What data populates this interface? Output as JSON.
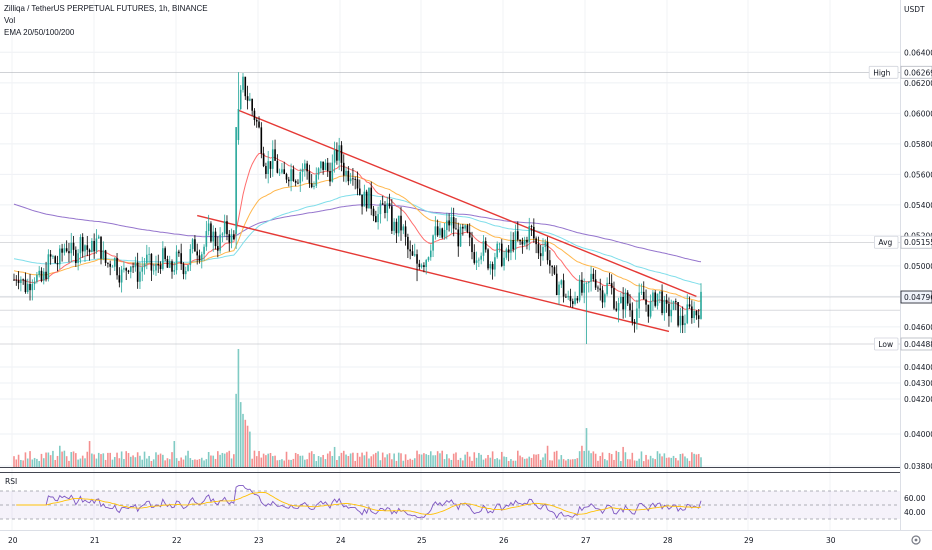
{
  "header": {
    "symbol_line": "Zilliqa / TetherUS PERPETUAL FUTURES, 1h, BINANCE",
    "vol_label": "Vol",
    "ema_label": "EMA 20/50/100/200"
  },
  "price_axis": {
    "currency": "USDT",
    "ticks": [
      "0.06400",
      "0.06200",
      "0.06000",
      "0.05800",
      "0.05600",
      "0.05400",
      "0.05200",
      "0.05000",
      "0.04800",
      "0.04600",
      "0.04400",
      "0.04300",
      "0.04200",
      "0.04000",
      "0.03800"
    ],
    "badges": {
      "high_label": "High",
      "high_value": "0.06269",
      "avg_label": "Avg",
      "avg_value": "0.05155",
      "last_value": "0.04796",
      "low_label": "Low",
      "low_value": "0.04488"
    }
  },
  "rsi": {
    "label": "RSI",
    "ticks": [
      "60.00",
      "40.00"
    ]
  },
  "time_axis": {
    "labels": [
      "20",
      "21",
      "22",
      "23",
      "24",
      "25",
      "26",
      "27",
      "28",
      "29",
      "30"
    ]
  },
  "colors": {
    "up": "#26a69a",
    "down": "#000000",
    "trendline": "#e53935",
    "ema20": "#ff6d6d",
    "ema50": "#ffb74d",
    "ema100": "#80deea",
    "ema200": "#9575cd",
    "vol_up": "#80cbc4",
    "vol_down": "#f48f8f",
    "rsi_line": "#7e57c2",
    "rsi_ma": "#ffc107"
  },
  "chart_data": {
    "type": "candlestick",
    "timeframe": "1h",
    "x_ticks": [
      "20",
      "21",
      "22",
      "23",
      "24",
      "25",
      "26",
      "27",
      "28",
      "29",
      "30"
    ],
    "ylim": [
      0.0437,
      0.0652
    ],
    "anchors_close": [
      [
        0,
        0.0491
      ],
      [
        10,
        0.049
      ],
      [
        20,
        0.0508
      ],
      [
        28,
        0.0512
      ],
      [
        35,
        0.0514
      ],
      [
        45,
        0.0498
      ],
      [
        55,
        0.0499
      ],
      [
        65,
        0.0501
      ],
      [
        72,
        0.05
      ],
      [
        85,
        0.0518
      ],
      [
        96,
        0.052
      ],
      [
        97,
        0.059
      ],
      [
        100,
        0.0615
      ],
      [
        103,
        0.0612
      ],
      [
        106,
        0.059
      ],
      [
        110,
        0.057
      ],
      [
        115,
        0.0563
      ],
      [
        120,
        0.0558
      ],
      [
        125,
        0.0565
      ],
      [
        130,
        0.0555
      ],
      [
        136,
        0.0564
      ],
      [
        142,
        0.057
      ],
      [
        148,
        0.056
      ],
      [
        152,
        0.0548
      ],
      [
        156,
        0.0538
      ],
      [
        162,
        0.0536
      ],
      [
        168,
        0.0525
      ],
      [
        173,
        0.051
      ],
      [
        176,
        0.0498
      ],
      [
        180,
        0.051
      ],
      [
        186,
        0.0522
      ],
      [
        192,
        0.0526
      ],
      [
        198,
        0.0515
      ],
      [
        204,
        0.0508
      ],
      [
        212,
        0.0505
      ],
      [
        220,
        0.0515
      ],
      [
        226,
        0.052
      ],
      [
        232,
        0.051
      ],
      [
        236,
        0.0492
      ],
      [
        240,
        0.048
      ],
      [
        246,
        0.048
      ],
      [
        252,
        0.049
      ],
      [
        258,
        0.0486
      ],
      [
        264,
        0.0476
      ],
      [
        270,
        0.0472
      ],
      [
        276,
        0.0476
      ],
      [
        282,
        0.0478
      ],
      [
        288,
        0.0468
      ],
      [
        295,
        0.0466
      ],
      [
        300,
        0.0478
      ]
    ],
    "high_points": [
      [
        98,
        0.06269
      ],
      [
        101,
        0.0614
      ],
      [
        104,
        0.0608
      ],
      [
        141,
        0.0581
      ]
    ],
    "low_points": [
      [
        250,
        0.04488
      ],
      [
        176,
        0.049
      ],
      [
        264,
        0.0463
      ]
    ],
    "ema_periods": [
      20,
      50,
      100,
      200
    ],
    "ema200_seed": 0.0541,
    "ema100_seed": 0.0505,
    "ema50_seed": 0.0497,
    "price_badges": {
      "high": 0.06269,
      "avg": 0.05155,
      "last": 0.04796,
      "low": 0.04488
    },
    "trendlines": [
      {
        "from": [
          98,
          0.0602
        ],
        "to": [
          298,
          0.048
        ]
      },
      {
        "from": [
          80,
          0.0533
        ],
        "to": [
          286,
          0.0457
        ]
      }
    ],
    "volume": {
      "ylim": [
        0,
        1
      ],
      "base": 0.1,
      "spikes": [
        [
          98,
          1.0
        ],
        [
          97,
          0.62
        ],
        [
          99,
          0.55
        ],
        [
          100,
          0.45
        ],
        [
          101,
          0.4
        ],
        [
          102,
          0.35
        ],
        [
          103,
          0.3
        ],
        [
          33,
          0.22
        ],
        [
          20,
          0.18
        ],
        [
          70,
          0.22
        ],
        [
          250,
          0.33
        ],
        [
          233,
          0.18
        ],
        [
          266,
          0.17
        ],
        [
          140,
          0.17
        ],
        [
          248,
          0.18
        ]
      ]
    },
    "rsi": {
      "ylim": [
        20,
        80
      ],
      "guides": [
        70,
        50,
        30
      ],
      "ma_period": 14
    }
  }
}
